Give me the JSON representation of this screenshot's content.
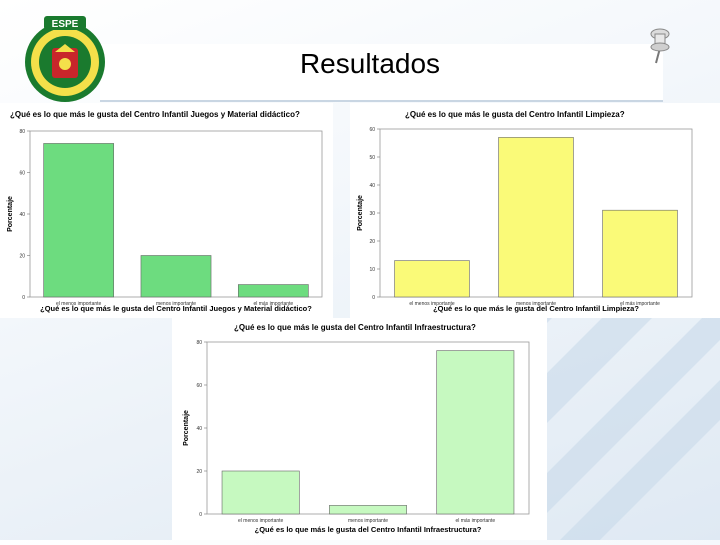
{
  "slide": {
    "title": "Resultados"
  },
  "logo": {
    "label": "ESPE",
    "ring_text": "UNIVERSIDAD DE LAS FUERZAS ARMADAS",
    "icon": "university-seal"
  },
  "colors": {
    "green": "#6ddc7f",
    "yellow": "#fafa78",
    "lightgreen": "#c6f9c0"
  },
  "chart_data": [
    {
      "type": "bar",
      "title": "¿Qué es lo que más le gusta del Centro Infantil Juegos y Material didáctico?",
      "xlabel": "¿Qué es lo que más le gusta del Centro Infantil Juegos y Material didáctico?",
      "ylabel": "Porcentaje",
      "categories": [
        "el menos importante",
        "menos importante",
        "el más importante"
      ],
      "values": [
        74,
        20,
        6
      ],
      "ylim": [
        0,
        80
      ],
      "yticks": [
        "0",
        "20",
        "40",
        "60",
        "80"
      ],
      "color": "#6ddc7f"
    },
    {
      "type": "bar",
      "title": "¿Qué es lo que más le gusta del Centro Infantil Limpieza?",
      "xlabel": "¿Qué es lo que más le gusta del Centro Infantil Limpieza?",
      "ylabel": "Porcentaje",
      "categories": [
        "el menos importante",
        "menos importante",
        "el más importante"
      ],
      "values": [
        13,
        57,
        31
      ],
      "ylim": [
        0,
        60
      ],
      "yticks": [
        "0",
        "10",
        "20",
        "30",
        "40",
        "50",
        "60"
      ],
      "color": "#fafa78"
    },
    {
      "type": "bar",
      "title": "¿Qué es lo que más le gusta del Centro Infantil Infraestructura?",
      "xlabel": "¿Qué es lo que más le gusta del Centro Infantil Infraestructura?",
      "ylabel": "Porcentaje",
      "categories": [
        "el menos importante",
        "menos importante",
        "el más importante"
      ],
      "values": [
        20,
        4,
        76
      ],
      "ylim": [
        0,
        80
      ],
      "yticks": [
        "0",
        "20",
        "40",
        "60",
        "80"
      ],
      "color": "#c6f9c0"
    }
  ]
}
